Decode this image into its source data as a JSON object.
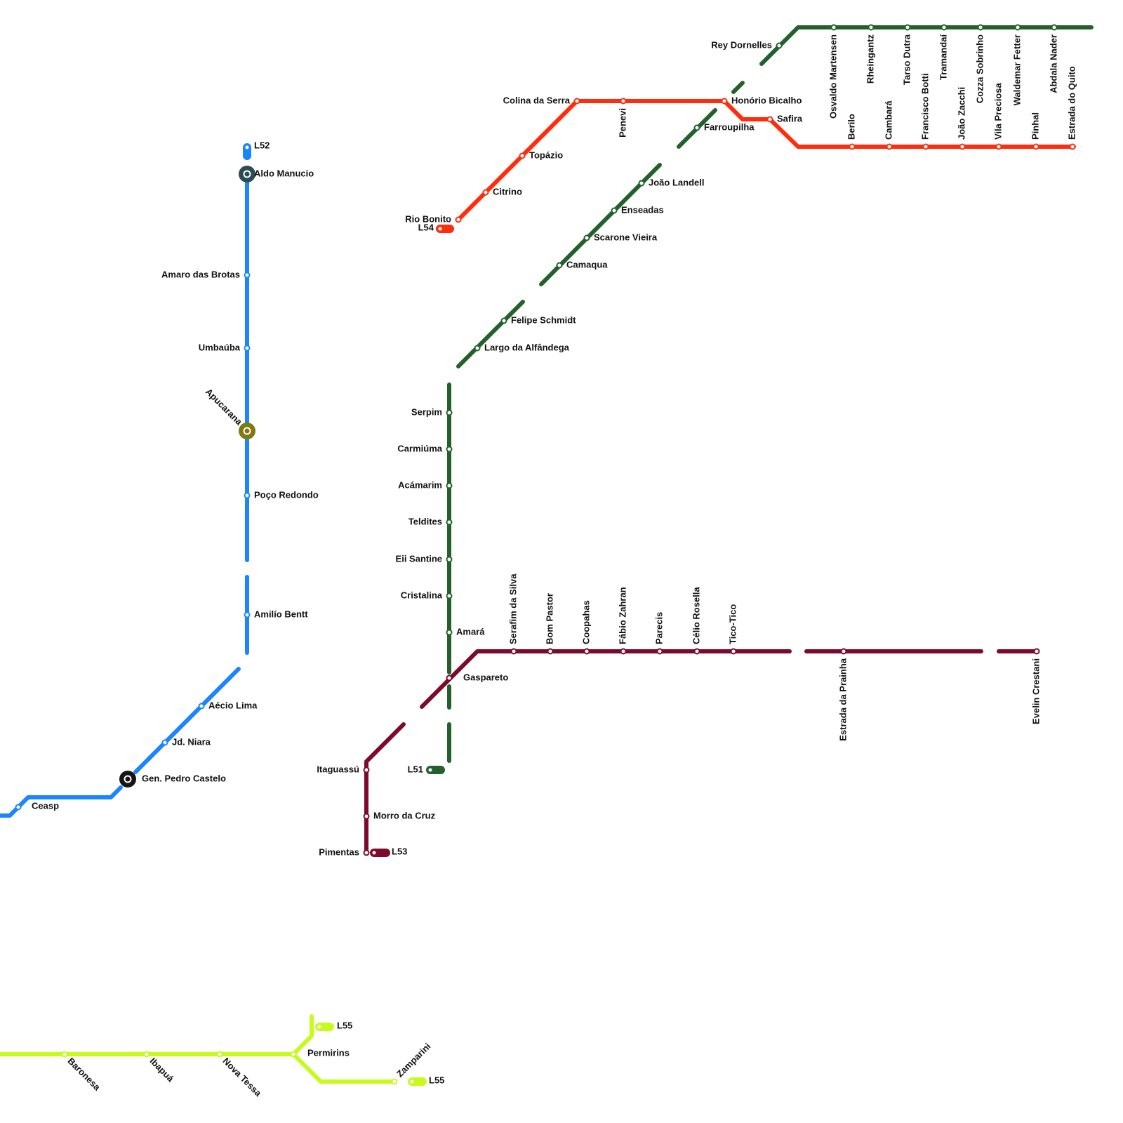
{
  "lines": [
    {
      "labels": [
        "L52"
      ],
      "color": "#1a85ff",
      "stations": [
        "Aldo Manucio",
        "Amaro das Brotas",
        "Umbaúba",
        "Apucarana",
        "Poço Redondo",
        "Amilío Bentt",
        "Aécio Lima",
        "Jd. Niara",
        "Gen. Pedro Castelo",
        "Ceasp"
      ]
    },
    {
      "labels": [
        "L54"
      ],
      "color": "#ff2d0d",
      "stations": [
        "Rio Bonito",
        "Citrino",
        "Topázio",
        "Colina da Serra",
        "Penevi",
        "Honório Bicalho",
        "Safira",
        "Berilo",
        "Cambará",
        "Francisco Botti",
        "João Zacchi",
        "Vila Preciosa",
        "Pinhal",
        "Estrada do Quito"
      ]
    },
    {
      "labels": [
        "L51"
      ],
      "color": "#24612a",
      "stations": [
        "Serpim",
        "Carmiúma",
        "Acámarim",
        "Teldites",
        "Eii Santine",
        "Cristalina",
        "Amará",
        "Largo da Alfândega",
        "Felipe Schmidt",
        "Camaqua",
        "Scarone Vieira",
        "Enseadas",
        "João Landell",
        "Farroupilha",
        "Rey Dornelles",
        "Osvaldo Martensen",
        "Rheingantz",
        "Tarso Dutra",
        "Tramandaí",
        "Cozza Sobrinho",
        "Waldemar Fetter",
        "Abdala Nader"
      ]
    },
    {
      "labels": [
        "L53"
      ],
      "color": "#7d0a2b",
      "stations": [
        "Pimentas",
        "Morro da Cruz",
        "Itaguassú",
        "Gaspareto",
        "Serafim da Silva",
        "Bom Pastor",
        "Coopahas",
        "Fábio Zahran",
        "Parecis",
        "Célio Rosella",
        "Tico-Tico",
        "Estrada da Prainha",
        "Evelin Crestani"
      ]
    },
    {
      "labels": [
        "L55",
        "L55"
      ],
      "color": "#c6fb1c",
      "stations": [
        "Baronesa",
        "Ibapuá",
        "Nova Tessa",
        "Permirins",
        "Zamparini"
      ]
    }
  ]
}
